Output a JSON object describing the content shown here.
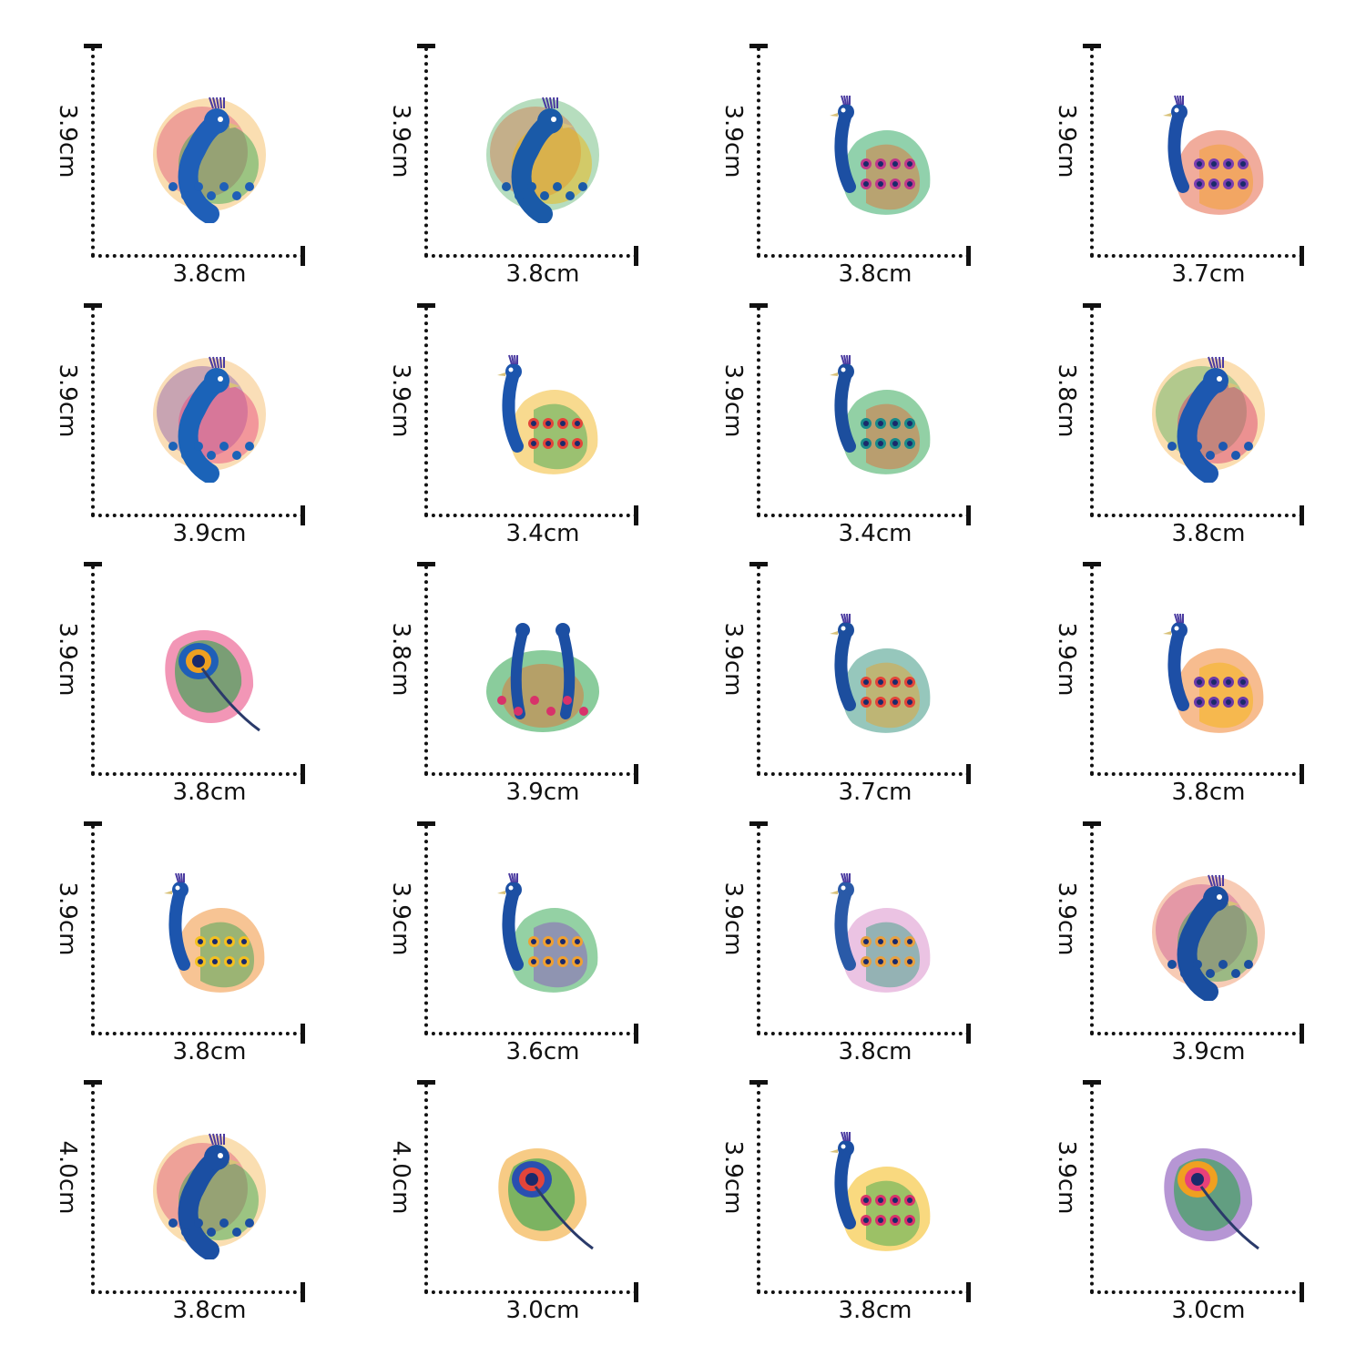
{
  "stickers": [
    {
      "height": "3.9cm",
      "width": "3.8cm",
      "subject": "peacock-head",
      "colors": [
        "#1f5fb8",
        "#2aa34a",
        "#f0a020",
        "#d8326a"
      ]
    },
    {
      "height": "3.9cm",
      "width": "3.8cm",
      "subject": "peacock-head",
      "colors": [
        "#1a5aa8",
        "#f3b400",
        "#2f9e44",
        "#e0582a"
      ]
    },
    {
      "height": "3.9cm",
      "width": "3.8cm",
      "subject": "peacock-standing",
      "colors": [
        "#1c4fa3",
        "#23a35a",
        "#e86a2a",
        "#c03a8a"
      ]
    },
    {
      "height": "3.9cm",
      "width": "3.7cm",
      "subject": "peacock-standing",
      "colors": [
        "#1d4fa6",
        "#e35a3a",
        "#f3a020",
        "#7a3fb0"
      ]
    },
    {
      "height": "3.9cm",
      "width": "3.9cm",
      "subject": "peacock-head",
      "colors": [
        "#1b63b8",
        "#e8407a",
        "#f0a030",
        "#6a3aa8"
      ]
    },
    {
      "height": "3.9cm",
      "width": "3.4cm",
      "subject": "peacock-standing",
      "colors": [
        "#1c55ad",
        "#f1b620",
        "#2aa14d",
        "#e2453a"
      ]
    },
    {
      "height": "3.9cm",
      "width": "3.4cm",
      "subject": "peacock-standing",
      "colors": [
        "#1c4e9e",
        "#26a24c",
        "#e9622f",
        "#1b8a8a"
      ]
    },
    {
      "height": "3.8cm",
      "width": "3.8cm",
      "subject": "peacock-head",
      "colors": [
        "#1d58b0",
        "#d8326a",
        "#f3a020",
        "#2aa34a"
      ]
    },
    {
      "height": "3.9cm",
      "width": "3.8cm",
      "subject": "peacock-feather",
      "colors": [
        "#2aa34a",
        "#e8407a",
        "#f0a020",
        "#1f5fb8"
      ]
    },
    {
      "height": "3.8cm",
      "width": "3.9cm",
      "subject": "peacock-pair",
      "colors": [
        "#1c4fa3",
        "#2aa34a",
        "#e86a2a",
        "#d8326a"
      ]
    },
    {
      "height": "3.9cm",
      "width": "3.7cm",
      "subject": "peacock-standing",
      "colors": [
        "#1c4e9e",
        "#2e8f7a",
        "#f0a020",
        "#e2453a"
      ]
    },
    {
      "height": "3.9cm",
      "width": "3.8cm",
      "subject": "peacock-standing",
      "colors": [
        "#1d4fa6",
        "#f07a20",
        "#f3b400",
        "#6a3aa8"
      ]
    },
    {
      "height": "3.9cm",
      "width": "3.8cm",
      "subject": "peacock-standing",
      "colors": [
        "#1c55ad",
        "#f08a2a",
        "#2aa14d",
        "#f3c020"
      ]
    },
    {
      "height": "3.9cm",
      "width": "3.6cm",
      "subject": "peacock-standing",
      "colors": [
        "#1c4fa3",
        "#2aa34a",
        "#8a4ac0",
        "#f0a030"
      ]
    },
    {
      "height": "3.9cm",
      "width": "3.8cm",
      "subject": "peacock-standing",
      "colors": [
        "#2a5aa8",
        "#d888c8",
        "#2a9e7a",
        "#e8a040"
      ]
    },
    {
      "height": "3.9cm",
      "width": "3.9cm",
      "subject": "peacock-head",
      "colors": [
        "#1a4ea0",
        "#2aa34a",
        "#e86a2a",
        "#c03a8a"
      ]
    },
    {
      "height": "4.0cm",
      "width": "3.8cm",
      "subject": "peacock-head",
      "colors": [
        "#1b4fa3",
        "#2aa34a",
        "#f0a020",
        "#d8326a"
      ]
    },
    {
      "height": "4.0cm",
      "width": "3.0cm",
      "subject": "peacock-feather",
      "colors": [
        "#2aa34a",
        "#f0a020",
        "#e2453a",
        "#2a4fb0"
      ]
    },
    {
      "height": "3.9cm",
      "width": "3.8cm",
      "subject": "peacock-standing",
      "colors": [
        "#1c4fa3",
        "#f3b400",
        "#2aa34a",
        "#d8326a"
      ]
    },
    {
      "height": "3.9cm",
      "width": "3.0cm",
      "subject": "peacock-feather",
      "colors": [
        "#2aa34a",
        "#7a3fb0",
        "#e8407a",
        "#f0a020"
      ]
    }
  ]
}
